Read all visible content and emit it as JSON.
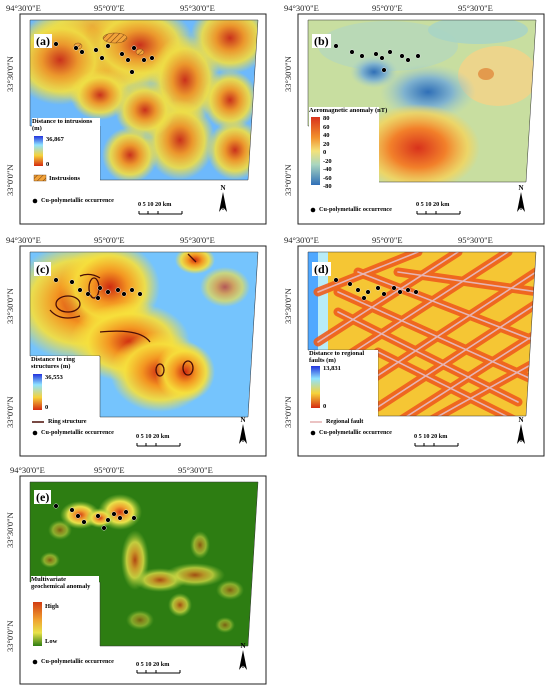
{
  "coords": {
    "lon1": "94°30'0\"E",
    "lon2": "95°0'0\"E",
    "lon3": "95°30'0\"E",
    "lat1": "33°30'0\"N",
    "lat2": "33°0'0\"N"
  },
  "common": {
    "occurrence": "Cu-polymetallic occurrence",
    "scale_text": "0  5  10     20 km",
    "north": "N"
  },
  "panels": {
    "a": {
      "label": "(a)",
      "legend_title": "Distance to intrusions (m)",
      "max": "36,867",
      "min": "0",
      "extra": "Instrusions"
    },
    "b": {
      "label": "(b)",
      "legend_title": "Aeromagnetic anomaly (nT)",
      "ticks": [
        "80",
        "60",
        "40",
        "20",
        "0",
        "-20",
        "-40",
        "-60",
        "-80"
      ]
    },
    "c": {
      "label": "(c)",
      "legend_title": "Distance to ring structures (m)",
      "max": "36,553",
      "min": "0",
      "extra": "Ring structure"
    },
    "d": {
      "label": "(d)",
      "legend_title": "Distance to regional faults (m)",
      "max": "13,831",
      "min": "0",
      "extra": "Regional fault"
    },
    "e": {
      "label": "(e)",
      "legend_title": "Multivariate geochemical anomaly",
      "max": "High",
      "min": "Low"
    }
  },
  "colors": {
    "dist_far": "#2233dd",
    "dist_mid": "#8fe3ff",
    "dist_near": "#f6d23a",
    "dist_zero": "#d42a10",
    "mag_pos": "#d8321c",
    "mag_neg": "#2f6fb7",
    "geo_low": "#2d7d12",
    "geo_high": "#d23c12"
  }
}
